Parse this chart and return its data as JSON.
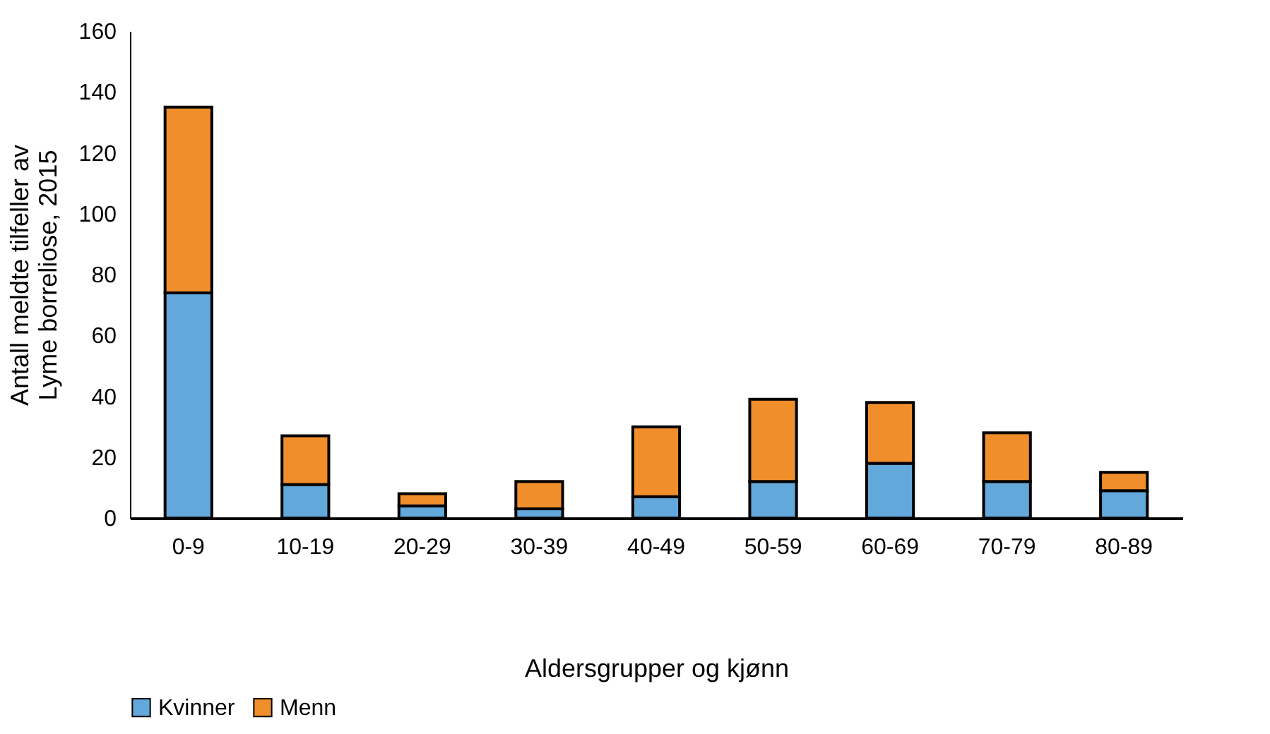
{
  "chart_data": {
    "type": "bar",
    "stacked": true,
    "xlabel": "Aldersgrupper og kjønn",
    "ylabel": "Antall meldte tilfeller av\nLyme borreliose, 2015",
    "categories": [
      "0-9",
      "10-19",
      "20-29",
      "30-39",
      "40-49",
      "50-59",
      "60-69",
      "70-79",
      "80-89"
    ],
    "series": [
      {
        "name": "Kvinner",
        "color": "#62a8da",
        "values": [
          74,
          11,
          4,
          3,
          7,
          12,
          18,
          12,
          9
        ]
      },
      {
        "name": "Menn",
        "color": "#f08e2c",
        "values": [
          61,
          16,
          4,
          9,
          23,
          27,
          20,
          16,
          6
        ]
      }
    ],
    "ylim": [
      0,
      160
    ],
    "yticks": [
      0,
      20,
      40,
      60,
      80,
      100,
      120,
      140,
      160
    ],
    "grid": false,
    "legend": "bottom"
  }
}
